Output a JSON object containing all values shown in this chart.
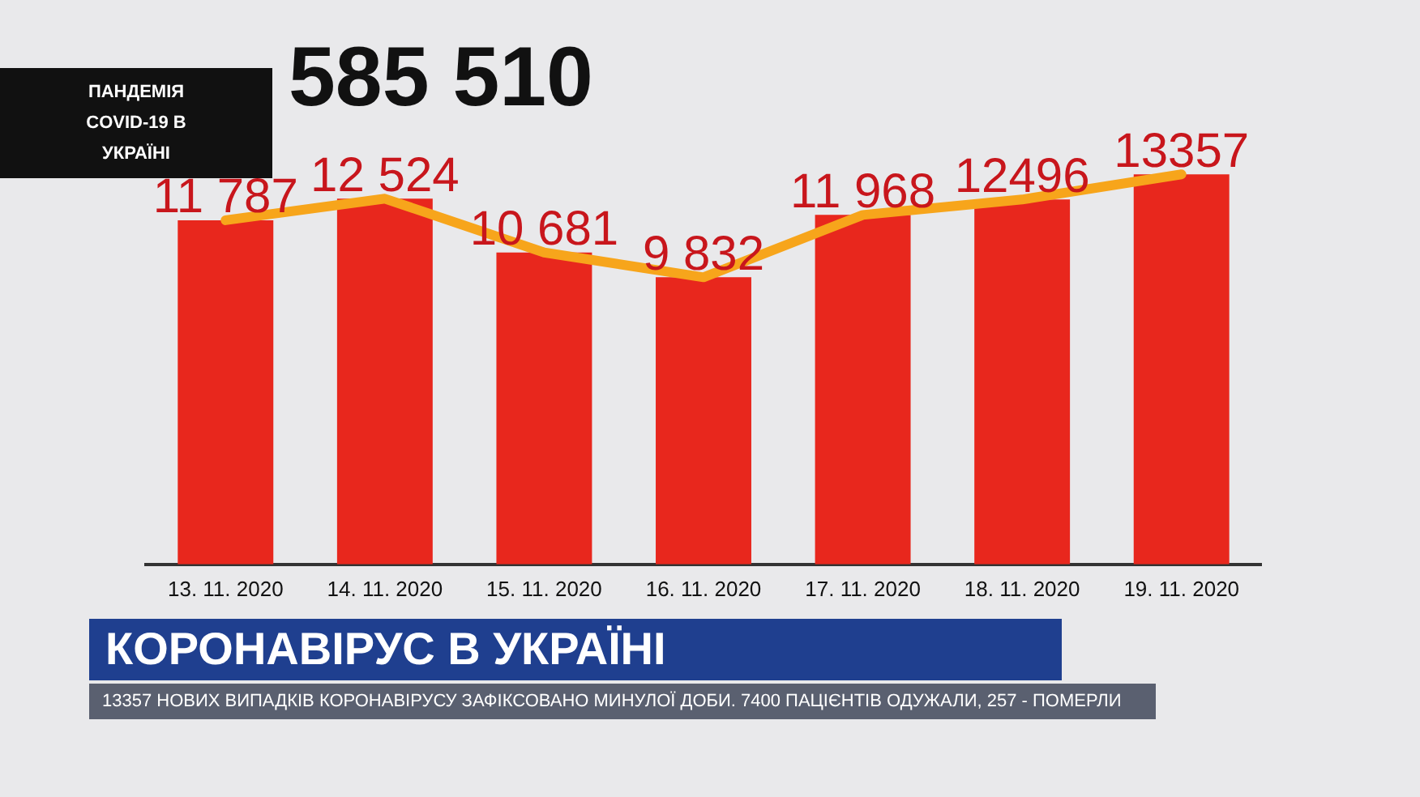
{
  "chart_data": {
    "type": "bar",
    "title": "585 510",
    "subtitle": "ПАНДЕМІЯ COVID-19 В УКРАЇНІ",
    "categories": [
      "13. 11. 2020",
      "14. 11. 2020",
      "15. 11. 2020",
      "16. 11. 2020",
      "17. 11. 2020",
      "18. 11. 2020",
      "19. 11. 2020"
    ],
    "series": [
      {
        "color": "#e8271d",
        "values": [
          11787,
          12524,
          10681,
          9832,
          11968,
          12496,
          13357
        ],
        "value_labels": [
          "11 787",
          "12 524",
          "10 681",
          "9 832",
          "11 968",
          "12496",
          "13357"
        ]
      },
      {
        "type": "line",
        "color": "#f7a51b",
        "values": [
          11787,
          12524,
          10681,
          9832,
          11968,
          12496,
          13357
        ]
      }
    ],
    "annotations": [
      "КОРОНАВІРУС В УКРАЇНІ",
      "13357 НОВИХ ВИПАДКІВ КОРОНАВІРУСУ ЗАФІКСОВАНО МИНУЛОЇ ДОБИ. 7400 ПАЦІЄНТІВ ОДУЖАЛИ, 257 - ПОМЕРЛИ"
    ],
    "grid": false,
    "legend": false,
    "marker": "none",
    "line_style": "solid"
  }
}
